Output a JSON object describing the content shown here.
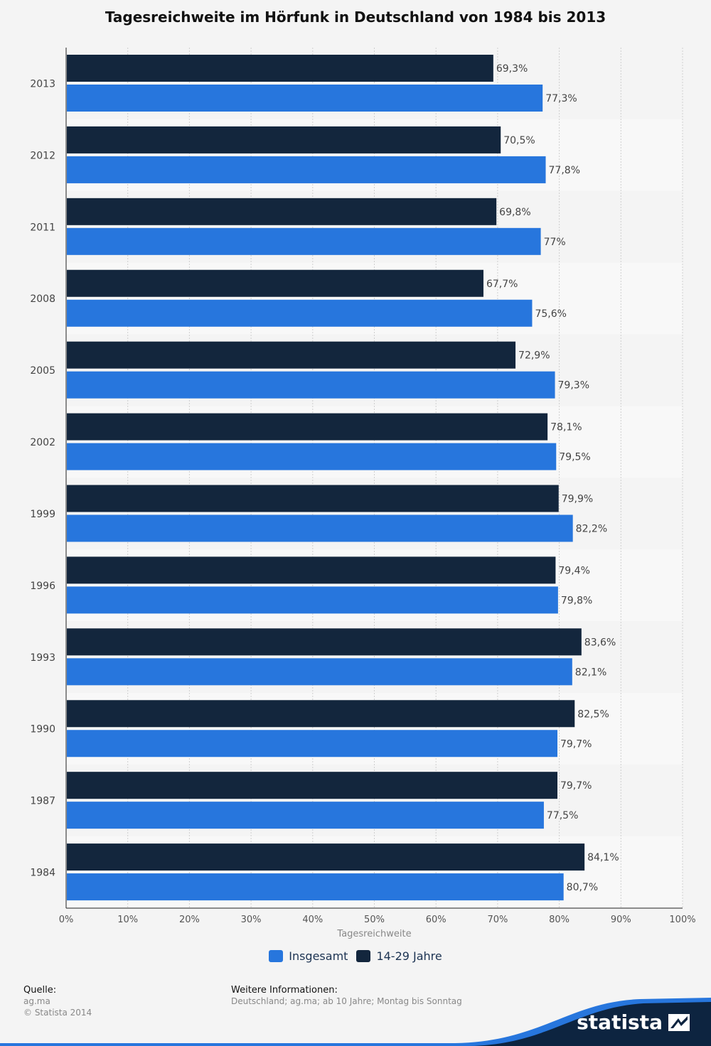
{
  "chart_data": {
    "type": "bar",
    "orientation": "horizontal",
    "title": "Tagesreichweite im Hörfunk in Deutschland von 1984 bis 2013",
    "xlabel": "Tagesreichweite",
    "ylabel": "",
    "xlim": [
      0,
      100
    ],
    "grid": true,
    "legend_position": "bottom",
    "categories": [
      "2013",
      "2012",
      "2011",
      "2008",
      "2005",
      "2002",
      "1999",
      "1996",
      "1993",
      "1990",
      "1987",
      "1984"
    ],
    "x_ticks": [
      "0%",
      "10%",
      "20%",
      "30%",
      "40%",
      "50%",
      "60%",
      "70%",
      "80%",
      "90%",
      "100%"
    ],
    "series": [
      {
        "name": "14-29 Jahre",
        "color": "#13263d",
        "values": [
          69.3,
          70.5,
          69.8,
          67.7,
          72.9,
          78.1,
          79.9,
          79.4,
          83.6,
          82.5,
          79.7,
          84.1
        ],
        "labels": [
          "69,3%",
          "70,5%",
          "69,8%",
          "67,7%",
          "72,9%",
          "78,1%",
          "79,9%",
          "79,4%",
          "83,6%",
          "82,5%",
          "79,7%",
          "84,1%"
        ]
      },
      {
        "name": "Insgesamt",
        "color": "#2776dd",
        "values": [
          77.3,
          77.8,
          77.0,
          75.6,
          79.3,
          79.5,
          82.2,
          79.8,
          82.1,
          79.7,
          77.5,
          80.7
        ],
        "labels": [
          "77,3%",
          "77,8%",
          "77%",
          "75,6%",
          "79,3%",
          "79,5%",
          "82,2%",
          "79,8%",
          "82,1%",
          "79,7%",
          "77,5%",
          "80,7%"
        ]
      }
    ]
  },
  "legend": {
    "items": [
      {
        "label": "Insgesamt",
        "color": "#2776dd"
      },
      {
        "label": "14-29 Jahre",
        "color": "#13263d"
      }
    ]
  },
  "footer": {
    "source_heading": "Quelle:",
    "source_line1": "ag.ma",
    "source_line2": "© Statista 2014",
    "info_heading": "Weitere Informationen:",
    "info_text": "Deutschland; ag.ma; ab 10 Jahre; Montag bis Sonntag"
  },
  "brand": {
    "name": "statista",
    "colors": {
      "wave_light": "#2776dd",
      "wave_dark": "#0d2440"
    }
  }
}
